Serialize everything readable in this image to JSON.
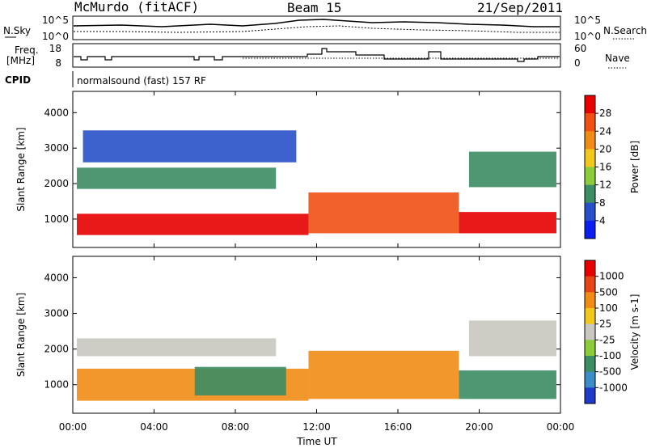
{
  "header": {
    "station": "McMurdo (fitACF)",
    "beam": "Beam 15",
    "date": "21/Sep/2011"
  },
  "sky_panel": {
    "left_label": "N.Sky",
    "right_label": "N.Search",
    "left_ticks": [
      "10^5",
      "10^0"
    ],
    "right_ticks": [
      "10^5",
      "10^0"
    ]
  },
  "freq_panel": {
    "left_label_line1": "Freq.",
    "left_label_line2": "[MHz]",
    "right_label": "Nave",
    "left_ticks": [
      "18",
      "8"
    ],
    "right_ticks": [
      "60",
      "0"
    ]
  },
  "cpid": {
    "label": "CPID",
    "value": "normalsound (fast) 157 RF"
  },
  "chart_data": [
    {
      "type": "heatmap",
      "name": "power",
      "ylabel": "Slant Range [km]",
      "ylim": [
        200,
        4600
      ],
      "yticks": [
        "1000",
        "2000",
        "3000",
        "4000"
      ],
      "yticks_values": [
        1000,
        2000,
        3000,
        4000
      ],
      "xlim": [
        0,
        24
      ],
      "colorbar": {
        "label": "Power [dB]",
        "ticks": [
          "4",
          "8",
          "12",
          "16",
          "20",
          "24",
          "28"
        ],
        "colors": [
          "#0a1ef0",
          "#2850c8",
          "#3c8c64",
          "#8ccc3c",
          "#f0c81e",
          "#f08c14",
          "#f05014",
          "#e60000"
        ]
      },
      "regions": [
        {
          "x0": 0.2,
          "x1": 11.6,
          "y0": 550,
          "y1": 1150,
          "level": 7
        },
        {
          "x0": 11.6,
          "x1": 19.0,
          "y0": 600,
          "y1": 1750,
          "level": 6
        },
        {
          "x0": 19.0,
          "x1": 23.8,
          "y0": 600,
          "y1": 1200,
          "level": 7
        },
        {
          "x0": 0.2,
          "x1": 10.0,
          "y0": 1850,
          "y1": 2450,
          "level": 2
        },
        {
          "x0": 0.5,
          "x1": 11.0,
          "y0": 2600,
          "y1": 3500,
          "level": 1
        },
        {
          "x0": 19.5,
          "x1": 23.8,
          "y0": 1900,
          "y1": 2900,
          "level": 2
        }
      ]
    },
    {
      "type": "heatmap",
      "name": "velocity",
      "ylabel": "Slant Range [km]",
      "ylim": [
        200,
        4600
      ],
      "yticks": [
        "1000",
        "2000",
        "3000",
        "4000"
      ],
      "yticks_values": [
        1000,
        2000,
        3000,
        4000
      ],
      "xlim": [
        0,
        24
      ],
      "colorbar": {
        "label": "Velocity [m s-1]",
        "ticks": [
          "1000",
          "500",
          "100",
          "25",
          "-25",
          "-100",
          "-500",
          "-1000"
        ],
        "colors": [
          "#1e3cc8",
          "#3c8cc8",
          "#3c8c64",
          "#8ccc3c",
          "#c8c8c0",
          "#f0c81e",
          "#f08c14",
          "#e64614",
          "#e60000"
        ]
      },
      "regions": [
        {
          "x0": 0.2,
          "x1": 11.6,
          "y0": 550,
          "y1": 1450,
          "level": 6
        },
        {
          "x0": 6.0,
          "x1": 10.5,
          "y0": 700,
          "y1": 1500,
          "level": 2
        },
        {
          "x0": 11.6,
          "x1": 19.0,
          "y0": 600,
          "y1": 1950,
          "level": 6
        },
        {
          "x0": 19.0,
          "x1": 23.8,
          "y0": 600,
          "y1": 1400,
          "level": 2
        },
        {
          "x0": 0.2,
          "x1": 10.0,
          "y0": 1800,
          "y1": 2300,
          "level": 4
        },
        {
          "x0": 19.5,
          "x1": 23.8,
          "y0": 1800,
          "y1": 2800,
          "level": 4
        }
      ]
    }
  ],
  "time_axis": {
    "xlabel": "Time UT",
    "ticks": [
      "00:00",
      "04:00",
      "08:00",
      "12:00",
      "16:00",
      "20:00",
      "00:00"
    ],
    "tick_hours": [
      0,
      4,
      8,
      12,
      16,
      20,
      24
    ]
  }
}
